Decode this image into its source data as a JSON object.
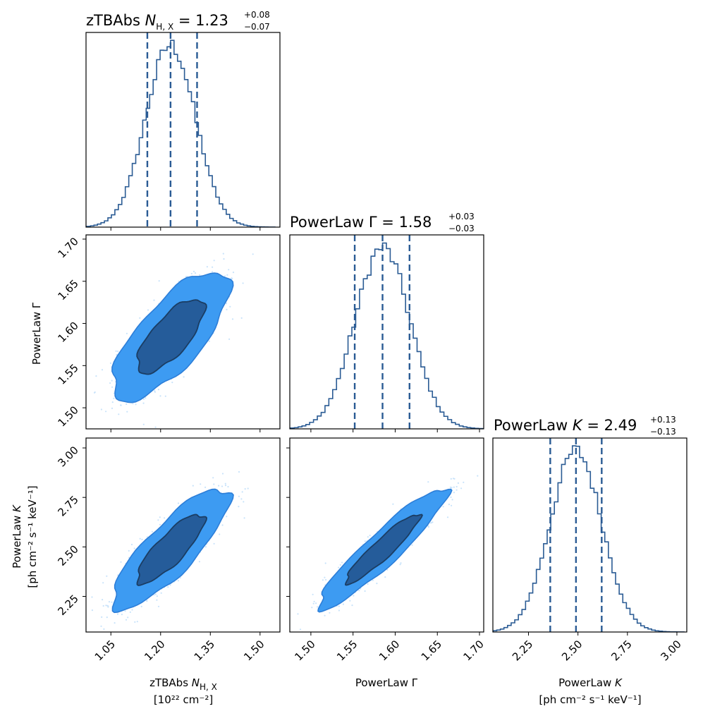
{
  "chart_data": {
    "type": "corner",
    "colors": {
      "hist": "#2a5b94",
      "median_line": "#2a5b94",
      "contour_outer": "#3d9bf2",
      "contour_inner": "#255c9a",
      "contour_edge": "#1b3d63",
      "scatter": "#c9e3fa",
      "outer_edge": "#2d7ed8"
    },
    "parameters": [
      {
        "name": "zTBAbs N_H,X",
        "title_prefix": "zTBAbs ",
        "symbol": "N",
        "subscript": "H, X",
        "eq": " = 1.23",
        "median": 1.23,
        "plus": "+0.08",
        "minus": "−0.07",
        "q16": 1.16,
        "q84": 1.31,
        "range": [
          0.975,
          1.56
        ],
        "ticks": [
          "1.05",
          "1.20",
          "1.35",
          "1.50"
        ],
        "tick_values": [
          1.05,
          1.2,
          1.35,
          1.5
        ],
        "xlabel_line1_prefix": "zTBAbs ",
        "xlabel_line1_symbol": "N",
        "xlabel_line1_sub": "H, X",
        "xlabel_line2": "[10²² cm⁻²]"
      },
      {
        "name": "PowerLaw Γ",
        "title_prefix": "PowerLaw Γ",
        "eq": " = 1.58",
        "median": 1.585,
        "plus": "+0.03",
        "minus": "−0.03",
        "q16": 1.552,
        "q84": 1.617,
        "range": [
          1.475,
          1.705
        ],
        "ticks": [
          "1.50",
          "1.55",
          "1.60",
          "1.65",
          "1.70"
        ],
        "tick_values": [
          1.5,
          1.55,
          1.6,
          1.65,
          1.7
        ],
        "label": "PowerLaw Γ",
        "xlabel_line1": "PowerLaw Γ"
      },
      {
        "name": "PowerLaw K",
        "title_prefix": "PowerLaw ",
        "symbol": "K",
        "eq": " = 2.49",
        "median": 2.49,
        "plus": "+0.13",
        "minus": "−0.13",
        "q16": 2.36,
        "q84": 2.62,
        "range": [
          2.07,
          3.05
        ],
        "ticks": [
          "2.25",
          "2.50",
          "2.75",
          "3.00"
        ],
        "tick_values": [
          2.25,
          2.5,
          2.75,
          3.0
        ],
        "label_line1_prefix": "PowerLaw ",
        "label_line1_symbol": "K",
        "label_line2": "[ph cm⁻² s⁻¹ keV⁻¹]"
      }
    ],
    "correlations": {
      "1_0": 0.73,
      "2_0": 0.83,
      "2_1": 0.93
    },
    "contour_levels_sigma": [
      1,
      2
    ],
    "histogram_bins": 60
  }
}
